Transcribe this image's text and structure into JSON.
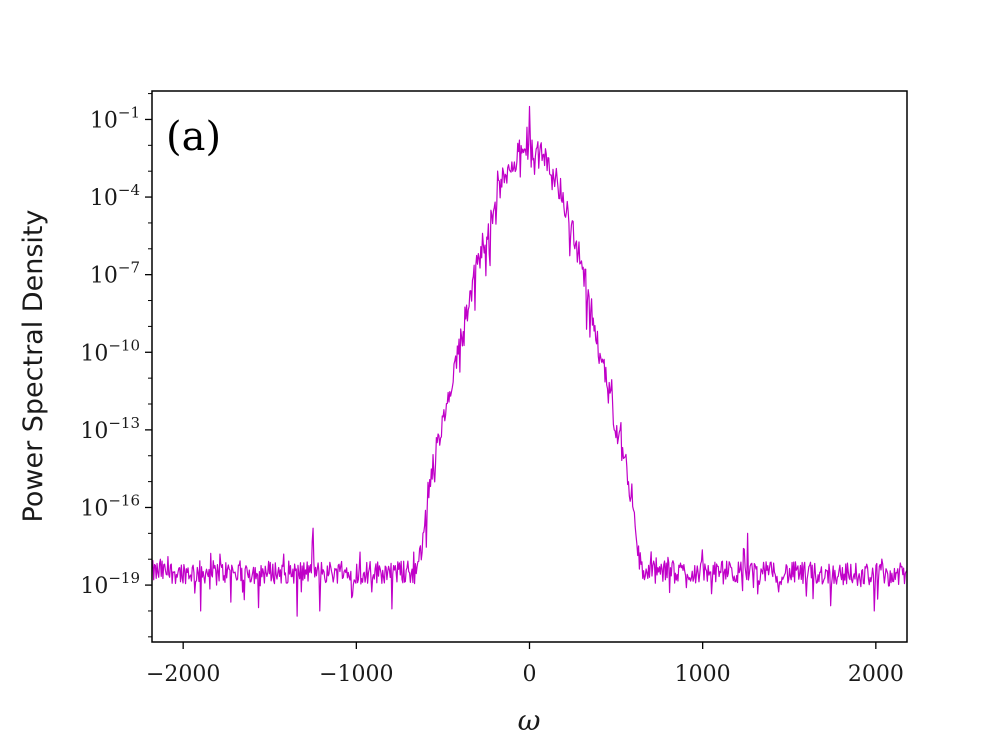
{
  "chart_data": {
    "type": "line",
    "panel_label": "(a)",
    "xlabel": "ω",
    "ylabel": "Power Spectral Density",
    "xlim": [
      -2180,
      2180
    ],
    "ylim_log10": [
      -21.2,
      0.1
    ],
    "yscale": "log",
    "grid": false,
    "x_ticks": [
      {
        "value": -2000,
        "label": "−2000"
      },
      {
        "value": -1000,
        "label": "−1000"
      },
      {
        "value": 0,
        "label": "0"
      },
      {
        "value": 1000,
        "label": "1000"
      },
      {
        "value": 2000,
        "label": "2000"
      }
    ],
    "y_ticks": [
      {
        "exp": -1,
        "base": "10",
        "sup": "−1"
      },
      {
        "exp": -4,
        "base": "10",
        "sup": "−4"
      },
      {
        "exp": -7,
        "base": "10",
        "sup": "−7"
      },
      {
        "exp": -10,
        "base": "10",
        "sup": "−10"
      },
      {
        "exp": -13,
        "base": "10",
        "sup": "−13"
      },
      {
        "exp": -16,
        "base": "10",
        "sup": "−16"
      },
      {
        "exp": -19,
        "base": "10",
        "sup": "−19"
      }
    ],
    "series": [
      {
        "color": "#c000c8",
        "envelope_log10": [
          [
            -2180,
            -18.5
          ],
          [
            -1000,
            -18.5
          ],
          [
            -660,
            -18.5
          ],
          [
            -620,
            -17.8
          ],
          [
            -600,
            -15.9
          ],
          [
            -560,
            -14.4
          ],
          [
            -500,
            -12.8
          ],
          [
            -450,
            -11.4
          ],
          [
            -400,
            -9.7
          ],
          [
            -350,
            -8.0
          ],
          [
            -300,
            -6.6
          ],
          [
            -250,
            -5.3
          ],
          [
            -200,
            -4.2
          ],
          [
            -150,
            -3.3
          ],
          [
            -100,
            -2.6
          ],
          [
            -50,
            -2.4
          ],
          [
            0,
            -2.3
          ],
          [
            50,
            -2.4
          ],
          [
            100,
            -2.6
          ],
          [
            150,
            -3.3
          ],
          [
            200,
            -4.2
          ],
          [
            250,
            -5.3
          ],
          [
            300,
            -6.6
          ],
          [
            350,
            -8.0
          ],
          [
            400,
            -9.7
          ],
          [
            450,
            -11.4
          ],
          [
            500,
            -12.8
          ],
          [
            560,
            -14.4
          ],
          [
            600,
            -15.9
          ],
          [
            620,
            -17.8
          ],
          [
            660,
            -18.5
          ],
          [
            1000,
            -18.5
          ],
          [
            2180,
            -18.6
          ]
        ],
        "spikes_log10": [
          [
            0,
            -0.5
          ],
          [
            -1340,
            -20.2
          ],
          [
            -1250,
            -16.8
          ],
          [
            -1210,
            -20.0
          ],
          [
            -1900,
            -20.0
          ],
          [
            -1790,
            -17.8
          ],
          [
            1260,
            -17.0
          ],
          [
            1990,
            -20.0
          ],
          [
            1740,
            -19.8
          ],
          [
            -2130,
            -18.0
          ],
          [
            -15,
            -1.3
          ],
          [
            15,
            -1.8
          ],
          [
            -60,
            -1.8
          ],
          [
            70,
            -1.9
          ]
        ]
      }
    ]
  }
}
